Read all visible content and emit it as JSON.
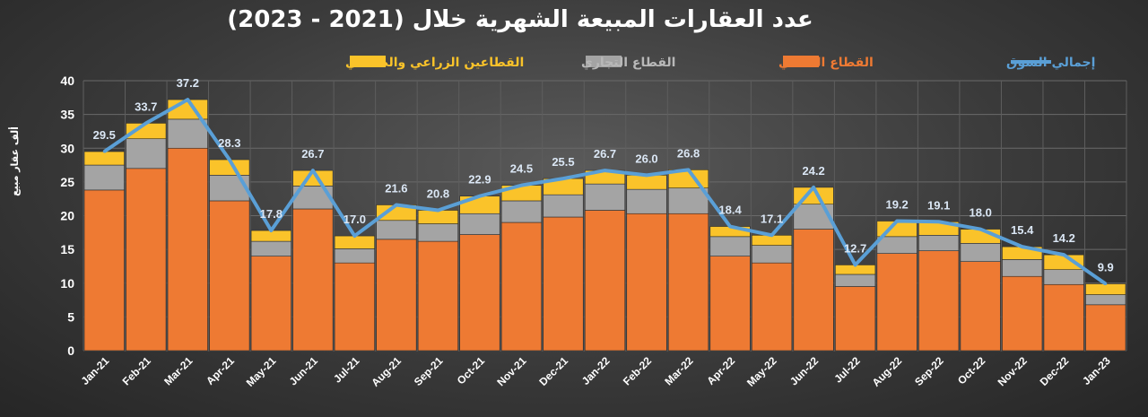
{
  "chart_data": {
    "type": "bar",
    "stacked": true,
    "title": "عدد العقارات المبيعة الشهرية خلال (2021 - 2023)",
    "ylabel": "ألف عقار مبيع",
    "xlabel": "",
    "ylim": [
      0,
      40
    ],
    "yticks": [
      0,
      5,
      10,
      15,
      20,
      25,
      30,
      35,
      40
    ],
    "grid": true,
    "legend_position": "top",
    "categories": [
      "Jan-21",
      "Feb-21",
      "Mar-21",
      "Apr-21",
      "May-21",
      "Jun-21",
      "Jul-21",
      "Aug-21",
      "Sep-21",
      "Oct-21",
      "Nov-21",
      "Dec-21",
      "Jan-22",
      "Feb-22",
      "Mar-22",
      "Apr-22",
      "May-22",
      "Jun-22",
      "Jul-22",
      "Aug-22",
      "Sep-22",
      "Oct-22",
      "Nov-22",
      "Dec-22",
      "Jan-23"
    ],
    "series": [
      {
        "name": "القطاع السكني",
        "color": "#ee7a33",
        "values": [
          23.8,
          27.0,
          30.0,
          22.2,
          14.0,
          21.0,
          13.0,
          16.5,
          16.2,
          17.2,
          19.0,
          19.8,
          20.8,
          20.3,
          20.3,
          14.0,
          13.0,
          18.0,
          9.5,
          14.4,
          14.8,
          13.2,
          11.0,
          9.8,
          6.8
        ]
      },
      {
        "name": "القطاع التجاري",
        "color": "#a4a4a4",
        "values": [
          3.7,
          4.4,
          4.3,
          3.8,
          2.2,
          3.4,
          2.1,
          2.8,
          2.6,
          3.1,
          3.2,
          3.3,
          3.9,
          3.6,
          3.8,
          2.9,
          2.6,
          3.7,
          1.8,
          2.5,
          2.3,
          2.7,
          2.5,
          2.2,
          1.5
        ]
      },
      {
        "name": "القطاعين الزراعي والصناعي",
        "color": "#fac32a",
        "values": [
          2.0,
          2.3,
          2.9,
          2.3,
          1.6,
          2.3,
          1.9,
          2.3,
          2.0,
          2.6,
          2.3,
          2.4,
          2.0,
          2.1,
          2.7,
          1.5,
          1.5,
          2.5,
          1.4,
          2.3,
          2.0,
          2.1,
          1.9,
          2.2,
          1.6
        ]
      },
      {
        "name": "إجمالي السوق",
        "type": "line",
        "color": "#5a9fd6",
        "values": [
          29.5,
          33.7,
          37.2,
          28.3,
          17.8,
          26.7,
          17.0,
          21.6,
          20.8,
          22.9,
          24.5,
          25.5,
          26.7,
          26.0,
          26.8,
          18.4,
          17.1,
          24.2,
          12.7,
          19.2,
          19.1,
          18.0,
          15.4,
          14.2,
          9.9
        ],
        "labels": [
          "29.5",
          "33.7",
          "37.2",
          "28.3",
          "17.8",
          "26.7",
          "17.0",
          "21.6",
          "20.8",
          "22.9",
          "24.5",
          "25.5",
          "26.7",
          "26.0",
          "26.8",
          "18.4",
          "17.1",
          "24.2",
          "12.7",
          "19.2",
          "19.1",
          "18.0",
          "15.4",
          "14.2",
          "9.9"
        ]
      }
    ]
  },
  "legend": {
    "total": "إجمالي السوق",
    "residential": "القطاع السكني",
    "commercial": "القطاع التجاري",
    "agri_industrial": "القطاعين الزراعي والصناعي"
  }
}
